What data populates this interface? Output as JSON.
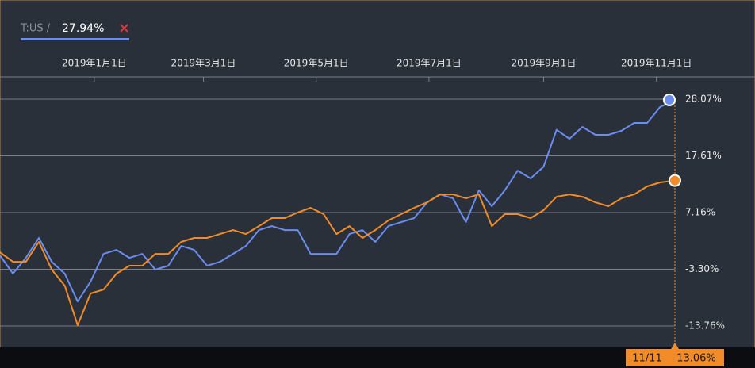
{
  "chart_data": {
    "type": "line",
    "header": {
      "symbol": "T:US /",
      "value_label": "27.94%"
    },
    "crosshair": {
      "date_label": "11/11",
      "value_label": "13.06%"
    },
    "x": [
      "2018-11-11",
      "2018-11-18",
      "2018-11-25",
      "2018-12-02",
      "2018-12-09",
      "2018-12-16",
      "2018-12-23",
      "2018-12-30",
      "2019-01-06",
      "2019-01-13",
      "2019-01-20",
      "2019-01-27",
      "2019-02-03",
      "2019-02-10",
      "2019-02-17",
      "2019-02-24",
      "2019-03-03",
      "2019-03-10",
      "2019-03-17",
      "2019-03-24",
      "2019-03-31",
      "2019-04-07",
      "2019-04-14",
      "2019-04-21",
      "2019-04-28",
      "2019-05-05",
      "2019-05-12",
      "2019-05-19",
      "2019-05-26",
      "2019-06-02",
      "2019-06-09",
      "2019-06-16",
      "2019-06-23",
      "2019-06-30",
      "2019-07-07",
      "2019-07-14",
      "2019-07-21",
      "2019-07-28",
      "2019-08-04",
      "2019-08-11",
      "2019-08-18",
      "2019-08-25",
      "2019-09-01",
      "2019-09-08",
      "2019-09-15",
      "2019-09-22",
      "2019-09-29",
      "2019-10-06",
      "2019-10-13",
      "2019-10-20",
      "2019-10-27",
      "2019-11-03",
      "2019-11-11"
    ],
    "series": [
      {
        "name": "T:US",
        "color": "#6b8cf0",
        "values": [
          -0.75,
          -4.11,
          -1.19,
          2.47,
          -1.92,
          -4.11,
          -9.24,
          -5.57,
          -0.46,
          0.27,
          -1.19,
          -0.46,
          -3.38,
          -2.65,
          1.0,
          0.27,
          -2.65,
          -1.92,
          -0.46,
          1.0,
          3.93,
          4.66,
          3.93,
          3.93,
          -0.46,
          -0.46,
          -0.46,
          3.2,
          3.93,
          1.74,
          4.66,
          5.39,
          6.13,
          9.05,
          10.51,
          9.78,
          5.39,
          11.25,
          8.32,
          11.25,
          14.9,
          13.44,
          15.63,
          22.41,
          20.76,
          22.95,
          21.49,
          21.49,
          22.22,
          23.68,
          23.68,
          26.61,
          27.94
        ]
      },
      {
        "color": "#f28c28",
        "values": [
          -0.17,
          -1.92,
          -1.92,
          1.74,
          -3.38,
          -6.31,
          -13.63,
          -7.77,
          -7.04,
          -4.11,
          -2.65,
          -2.65,
          -0.46,
          -0.46,
          1.74,
          2.47,
          2.47,
          3.2,
          3.93,
          3.2,
          4.66,
          6.13,
          6.13,
          7.15,
          8.03,
          6.86,
          3.2,
          4.66,
          2.47,
          3.93,
          5.69,
          6.86,
          8.03,
          9.05,
          10.51,
          10.51,
          9.78,
          10.51,
          4.66,
          6.86,
          6.86,
          6.13,
          7.59,
          10.07,
          10.51,
          10.07,
          9.05,
          8.32,
          9.78,
          10.51,
          11.98,
          12.71,
          13.06
        ]
      }
    ],
    "xlim": [
      "2018-11-11",
      "2019-11-11"
    ],
    "xticks": [
      {
        "value": "2019-01-01",
        "label": "2019年1月1日"
      },
      {
        "value": "2019-03-01",
        "label": "2019年3月1日"
      },
      {
        "value": "2019-05-01",
        "label": "2019年5月1日"
      },
      {
        "value": "2019-07-01",
        "label": "2019年7月1日"
      },
      {
        "value": "2019-09-01",
        "label": "2019年9月1日"
      },
      {
        "value": "2019-11-01",
        "label": "2019年11月1日"
      }
    ],
    "ylim": [
      -17.71,
      32.17
    ],
    "yticks": [
      {
        "value": 28.07,
        "label": "28.07%"
      },
      {
        "value": 17.61,
        "label": "17.61%"
      },
      {
        "value": 7.16,
        "label": "7.16%"
      },
      {
        "value": -3.3,
        "label": "-3.30%"
      },
      {
        "value": -13.76,
        "label": "-13.76%"
      }
    ],
    "grid": true
  }
}
